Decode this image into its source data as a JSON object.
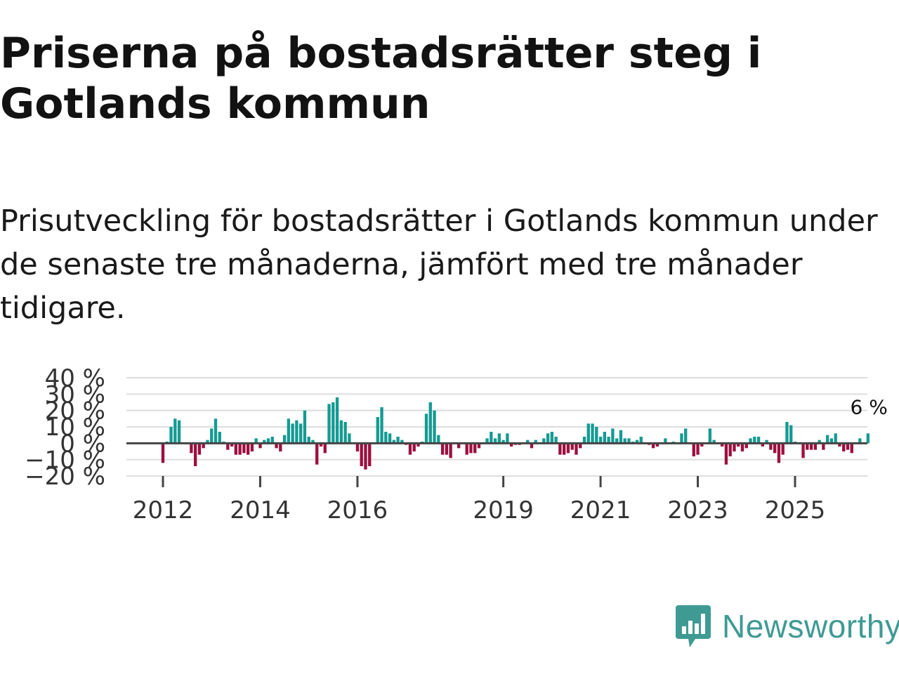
{
  "title": "Priserna på bostadsrätter steg i Gotlands kommun",
  "subtitle": "Prisutveckling för bostadsrätter i Gotlands kommun under de senaste tre månaderna, jämfört med tre månader tidigare.",
  "colors": {
    "positive": "#159a93",
    "negative": "#9c0f3e",
    "zero_line": "#444444",
    "grid": "#dddddd",
    "brand": "#3f9a94"
  },
  "brand": {
    "name": "Newsworthy",
    "icon": "chart-speech-bubble-icon"
  },
  "chart_data": {
    "type": "bar",
    "title": "",
    "xlabel": "",
    "ylabel": "",
    "ylim": [
      -20,
      40
    ],
    "yticks": [
      40,
      30,
      20,
      10,
      0,
      -10,
      -20
    ],
    "ytick_labels": [
      "40 %",
      "30 %",
      "20 %",
      "10 %",
      "0 %",
      "−10 %",
      "−20 %"
    ],
    "xticks": [
      2012,
      2014,
      2016,
      2019,
      2021,
      2023,
      2025
    ],
    "xtick_labels": [
      "2012",
      "2014",
      "2016",
      "2019",
      "2021",
      "2023",
      "2025"
    ],
    "x_start": 2012.0,
    "x_step_months": 1,
    "end_label": "6 %",
    "values": [
      -12,
      1,
      10,
      15,
      14,
      0,
      0,
      -6,
      -14,
      -7,
      -3,
      2,
      9,
      15,
      7,
      1,
      -4,
      -2,
      -7,
      -7,
      -6,
      -7,
      -5,
      3,
      -3,
      2,
      3,
      4,
      -3,
      -5,
      5,
      15,
      12,
      14,
      12,
      20,
      4,
      2,
      -13,
      -2,
      -6,
      24,
      25,
      28,
      14,
      13,
      6,
      0,
      -5,
      -14,
      -16,
      -14,
      0,
      16,
      22,
      7,
      6,
      2,
      4,
      2,
      -1,
      -7,
      -5,
      -2,
      1,
      18,
      25,
      20,
      5,
      -7,
      -7,
      -9,
      0,
      -3,
      0,
      -7,
      -6,
      -6,
      -3,
      0,
      3,
      7,
      3,
      6,
      2,
      6,
      -2,
      -1,
      -1,
      0,
      2,
      -3,
      2,
      0,
      3,
      6,
      7,
      4,
      -7,
      -7,
      -6,
      -4,
      -7,
      -3,
      4,
      12,
      12,
      10,
      4,
      7,
      4,
      9,
      3,
      8,
      3,
      3,
      1,
      2,
      4,
      0,
      -1,
      -3,
      -2,
      0,
      3,
      0,
      1,
      0,
      6,
      9,
      0,
      -8,
      -7,
      -2,
      0,
      9,
      2,
      0,
      -2,
      -13,
      -8,
      -5,
      -2,
      -5,
      -3,
      3,
      4,
      4,
      -2,
      2,
      -4,
      -6,
      -12,
      -7,
      13,
      11,
      1,
      0,
      -9,
      -4,
      -4,
      -4,
      2,
      -4,
      5,
      3,
      6,
      -2,
      -5,
      -4,
      -6,
      0,
      3,
      0,
      6
    ]
  }
}
